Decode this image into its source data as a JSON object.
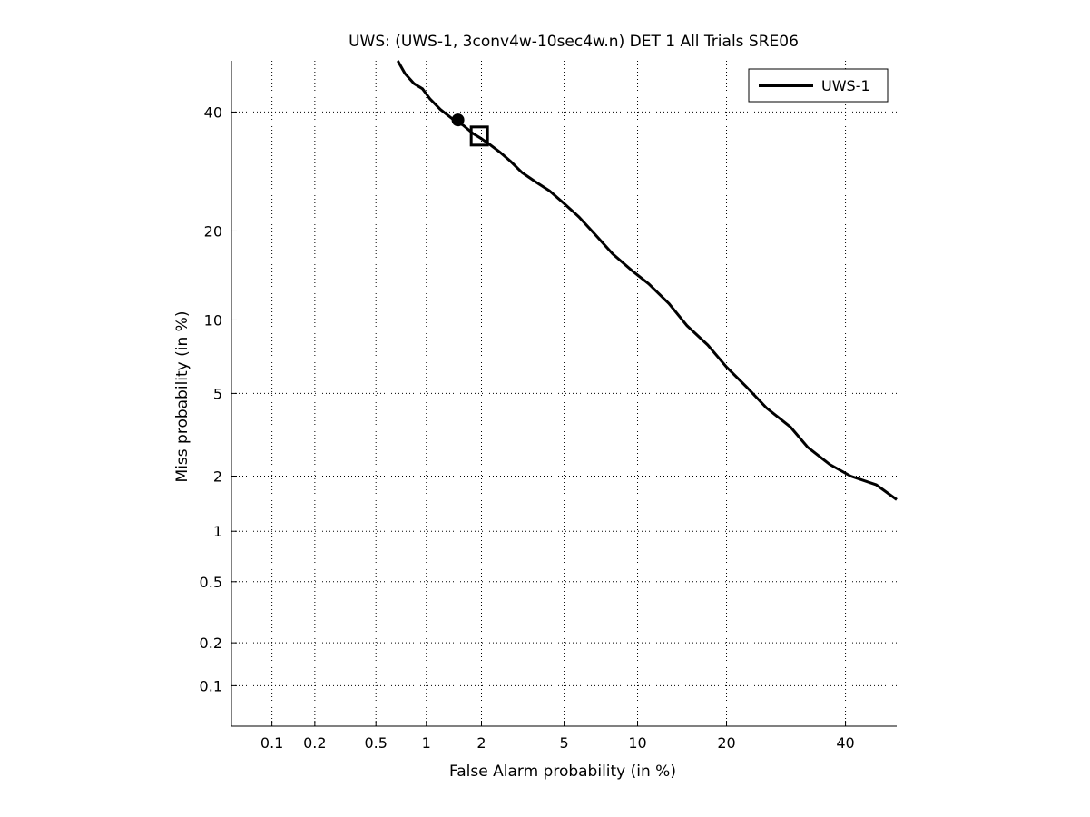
{
  "chart_data": {
    "type": "line",
    "title": "UWS: (UWS-1, 3conv4w-10sec4w.n) DET 1 All Trials SRE06",
    "xlabel": "False Alarm probability (in %)",
    "ylabel": "Miss probability (in %)",
    "x_scale": "probit",
    "y_scale": "probit",
    "xlim": [
      0.05,
      50
    ],
    "ylim": [
      0.05,
      50
    ],
    "x_ticks": [
      0.1,
      0.2,
      0.5,
      1,
      2,
      5,
      10,
      20,
      40
    ],
    "x_tick_labels": [
      "0.1",
      "0.2",
      "0.5",
      "1",
      "2",
      "5",
      "10",
      "20",
      "40"
    ],
    "y_ticks": [
      0.1,
      0.2,
      0.5,
      1,
      2,
      5,
      10,
      20,
      40
    ],
    "y_tick_labels": [
      "0.1",
      "0.2",
      "0.5",
      "1",
      "2",
      "5",
      "10",
      "20",
      "40"
    ],
    "grid": true,
    "legend_position": "top-right",
    "series": [
      {
        "name": "UWS-1",
        "color": "#000000",
        "x": [
          0.68,
          0.75,
          0.85,
          0.95,
          1.05,
          1.2,
          1.4,
          1.6,
          1.8,
          2.0,
          2.2,
          2.5,
          2.8,
          3.2,
          3.7,
          4.3,
          5.0,
          5.8,
          6.8,
          8.0,
          9.5,
          11,
          13,
          15,
          17.5,
          20,
          23,
          26,
          30,
          33,
          37,
          41,
          46,
          50
        ],
        "y": [
          50,
          47.5,
          45.5,
          44.5,
          42.5,
          40.5,
          38.7,
          37.5,
          36,
          35,
          34,
          32.5,
          31,
          29,
          27.5,
          26,
          24,
          22,
          19.5,
          17,
          15,
          13.5,
          11.5,
          9.5,
          8,
          6.5,
          5.3,
          4.3,
          3.5,
          2.8,
          2.3,
          2.0,
          1.8,
          1.5
        ]
      }
    ],
    "markers": [
      {
        "shape": "circle",
        "x": 1.5,
        "y": 38.5
      },
      {
        "shape": "square",
        "x": 1.95,
        "y": 35.5
      }
    ]
  }
}
